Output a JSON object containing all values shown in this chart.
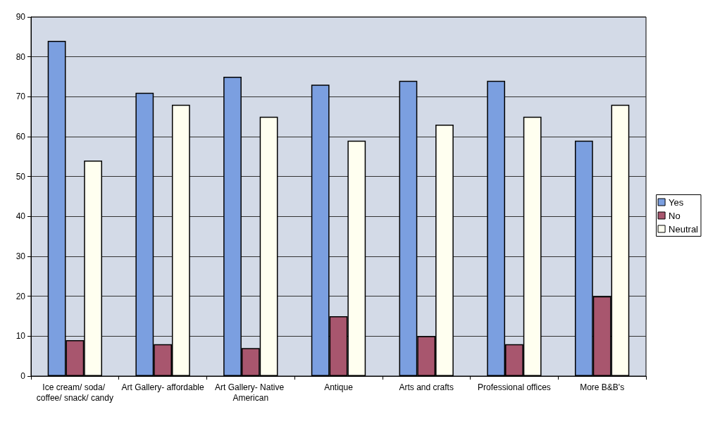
{
  "chart_data": {
    "type": "bar",
    "categories": [
      "Ice cream/ soda/ coffee/ snack/ candy",
      "Art Gallery- affordable",
      "Art Gallery- Native American",
      "Antique",
      "Arts and crafts",
      "Professional offices",
      "More B&B's"
    ],
    "series": [
      {
        "name": "Yes",
        "color": "#7b9fe0",
        "values": [
          84,
          71,
          75,
          73,
          74,
          74,
          59
        ]
      },
      {
        "name": "No",
        "color": "#a8566e",
        "values": [
          9,
          8,
          7,
          15,
          10,
          8,
          20
        ]
      },
      {
        "name": "Neutral",
        "color": "#fffff0",
        "values": [
          54,
          68,
          65,
          59,
          63,
          65,
          68
        ]
      }
    ],
    "ylim": [
      0,
      90
    ],
    "yticks": [
      0,
      10,
      20,
      30,
      40,
      50,
      60,
      70,
      80,
      90
    ],
    "grid": "y",
    "legend": "right"
  }
}
